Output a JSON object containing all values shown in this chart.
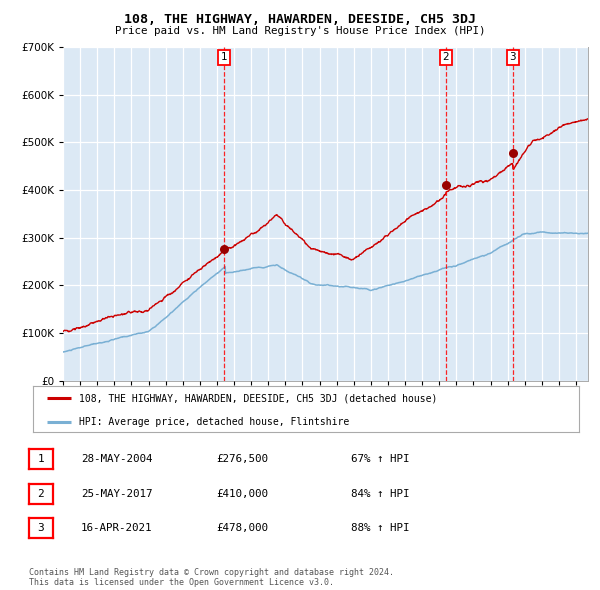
{
  "title": "108, THE HIGHWAY, HAWARDEN, DEESIDE, CH5 3DJ",
  "subtitle": "Price paid vs. HM Land Registry's House Price Index (HPI)",
  "background_color": "#dce9f5",
  "plot_bg_color": "#dce9f5",
  "red_line_color": "#cc0000",
  "blue_line_color": "#7ab0d4",
  "grid_color": "#ffffff",
  "sale_points": [
    {
      "x_year": 2004.42,
      "y": 276500,
      "label": "1"
    },
    {
      "x_year": 2017.4,
      "y": 410000,
      "label": "2"
    },
    {
      "x_year": 2021.29,
      "y": 478000,
      "label": "3"
    }
  ],
  "vline_years": [
    2004.42,
    2017.4,
    2021.29
  ],
  "xmin": 1995.0,
  "xmax": 2025.7,
  "ymin": 0,
  "ymax": 700000,
  "yticks": [
    0,
    100000,
    200000,
    300000,
    400000,
    500000,
    600000,
    700000
  ],
  "xtick_years": [
    1995,
    1996,
    1997,
    1998,
    1999,
    2000,
    2001,
    2002,
    2003,
    2004,
    2005,
    2006,
    2007,
    2008,
    2009,
    2010,
    2011,
    2012,
    2013,
    2014,
    2015,
    2016,
    2017,
    2018,
    2019,
    2020,
    2021,
    2022,
    2023,
    2024,
    2025
  ],
  "legend_entries": [
    "108, THE HIGHWAY, HAWARDEN, DEESIDE, CH5 3DJ (detached house)",
    "HPI: Average price, detached house, Flintshire"
  ],
  "table_rows": [
    {
      "num": "1",
      "date": "28-MAY-2004",
      "price": "£276,500",
      "pct": "67% ↑ HPI"
    },
    {
      "num": "2",
      "date": "25-MAY-2017",
      "price": "£410,000",
      "pct": "84% ↑ HPI"
    },
    {
      "num": "3",
      "date": "16-APR-2021",
      "price": "£478,000",
      "pct": "88% ↑ HPI"
    }
  ],
  "footer": "Contains HM Land Registry data © Crown copyright and database right 2024.\nThis data is licensed under the Open Government Licence v3.0."
}
